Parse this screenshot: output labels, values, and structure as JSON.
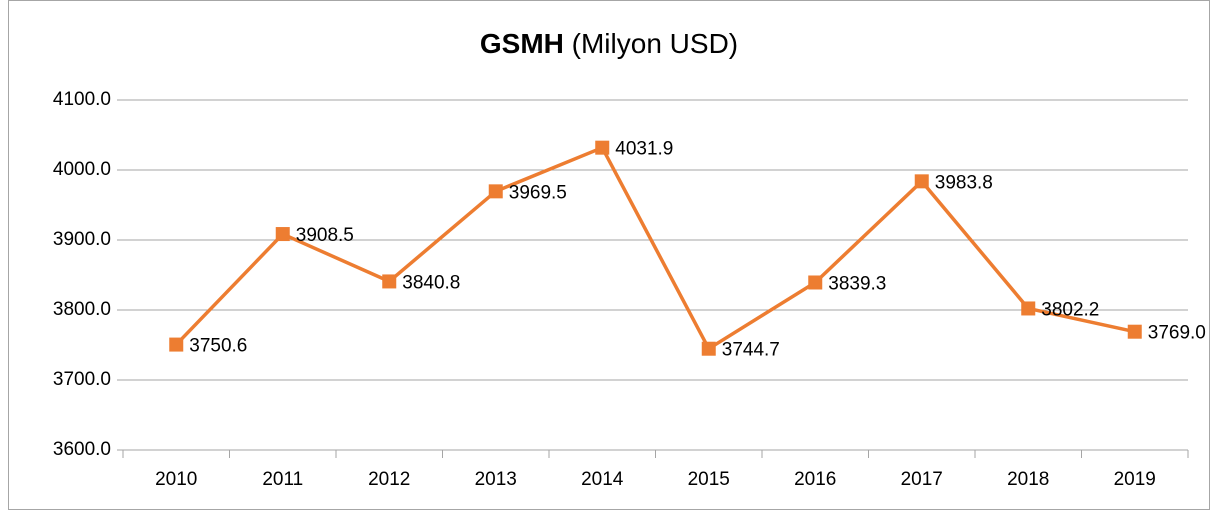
{
  "chart_data": {
    "type": "line",
    "title": [
      "GSMH",
      "(Milyon USD)"
    ],
    "categories": [
      "2010",
      "2011",
      "2012",
      "2013",
      "2014",
      "2015",
      "2016",
      "2017",
      "2018",
      "2019"
    ],
    "series": [
      {
        "name": "GSMH",
        "color": "#ed7d31",
        "values": [
          3750.6,
          3908.5,
          3840.8,
          3969.5,
          4031.9,
          3744.7,
          3839.3,
          3983.8,
          3802.2,
          3769.0
        ],
        "value_labels": [
          "3750.6",
          "3908.5",
          "3840.8",
          "3969.5",
          "4031.9",
          "3744.7",
          "3839.3",
          "3983.8",
          "3802.2",
          "3769.0"
        ]
      }
    ],
    "ylim": [
      3600,
      4100
    ],
    "yticks": [
      {
        "value": 3600,
        "label": "3600.0"
      },
      {
        "value": 3700,
        "label": "3700.0"
      },
      {
        "value": 3800,
        "label": "3800.0"
      },
      {
        "value": 3900,
        "label": "3900.0"
      },
      {
        "value": 4000,
        "label": "4000.0"
      },
      {
        "value": 4100,
        "label": "4100.0"
      }
    ],
    "grid": true
  }
}
